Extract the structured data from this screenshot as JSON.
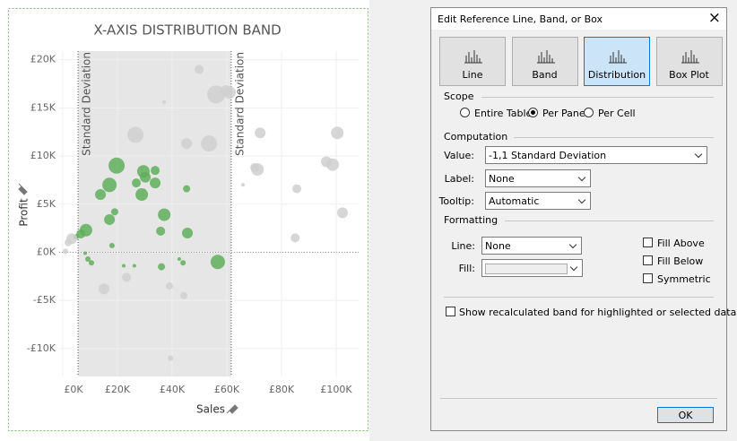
{
  "chart_data": {
    "type": "scatter",
    "title": "X-AXIS DISTRIBUTION BAND",
    "x_label": "Sales",
    "y_label": "Profit",
    "xlim": [
      -1300,
      108200
    ],
    "ylim": [
      -12900,
      20900
    ],
    "xticks": [
      {
        "value": 0,
        "label": "£0K"
      },
      {
        "value": 20000,
        "label": "£20K"
      },
      {
        "value": 40000,
        "label": "£40K"
      },
      {
        "value": 60000,
        "label": "£60K"
      },
      {
        "value": 80000,
        "label": "£80K"
      },
      {
        "value": 100000,
        "label": "£100K"
      }
    ],
    "yticks": [
      {
        "value": 20000,
        "label": "£20K"
      },
      {
        "value": 15000,
        "label": "£15K"
      },
      {
        "value": 10000,
        "label": "£10K"
      },
      {
        "value": 5000,
        "label": "£5K"
      },
      {
        "value": 0,
        "label": "£0K"
      },
      {
        "value": -5000,
        "label": "-£5K"
      },
      {
        "value": -10000,
        "label": "-£10K"
      }
    ],
    "grid": true,
    "zero_line": 0,
    "band": {
      "color": "#e6e6e6",
      "lines": [
        {
          "value": 5600,
          "label": "Standard Deviation"
        },
        {
          "value": 61600,
          "label": "Standard Deviation"
        }
      ]
    },
    "series": [
      {
        "color": "#5fae5c",
        "x": [
          19700,
          17100,
          13800,
          29500,
          30200,
          26900,
          33800,
          33800,
          28900,
          37100,
          19000,
          17100,
          8500,
          6600,
          4900,
          35800,
          45300,
          45600,
          56700,
          18000,
          8200,
          9200,
          10500,
          26200,
          36100,
          42600,
          44000,
          22300
        ],
        "values": [
          9000,
          7000,
          6000,
          8400,
          7800,
          7200,
          7200,
          8500,
          6000,
          3900,
          4200,
          3400,
          2300,
          1900,
          1600,
          2200,
          6600,
          2000,
          -1000,
          700,
          -100,
          -700,
          -1100,
          -1400,
          -1500,
          -700,
          -1100,
          -1400
        ],
        "sizes": [
          9,
          8,
          6,
          7,
          6,
          5,
          6,
          5,
          7,
          7,
          4,
          6,
          7,
          5,
          3,
          5,
          4,
          6,
          8,
          3,
          2,
          3,
          3,
          2,
          4,
          2,
          3,
          2
        ]
      },
      {
        "color": "#cfcfcf",
        "x": [
          56100,
          49900,
          26600,
          53500,
          45300,
          37100,
          59700,
          61000,
          72200,
          71200,
          70200,
          65900,
          85600,
          96400,
          98700,
          100400,
          102300,
          85000,
          3300,
          2000,
          1000,
          15100,
          23300,
          39000,
          44300,
          39400
        ],
        "values": [
          16400,
          19000,
          12200,
          11300,
          11300,
          15600,
          16800,
          16600,
          12400,
          8600,
          8800,
          7000,
          6600,
          9400,
          9100,
          12400,
          4100,
          1500,
          1400,
          1000,
          100,
          -3800,
          -2600,
          -3500,
          -4500,
          -11000
        ],
        "sizes": [
          10,
          5,
          9,
          9,
          6,
          2,
          6,
          7,
          6,
          7,
          5,
          2,
          5,
          6,
          7,
          7,
          6,
          5,
          6,
          4,
          3,
          6,
          5,
          4,
          4,
          3
        ]
      }
    ]
  },
  "dialog": {
    "title": "Edit Reference Line, Band, or Box",
    "close": "×",
    "tabs": [
      {
        "label": "Line",
        "selected": false
      },
      {
        "label": "Band",
        "selected": false
      },
      {
        "label": "Distribution",
        "selected": true
      },
      {
        "label": "Box Plot",
        "selected": false
      }
    ],
    "scope": {
      "label": "Scope",
      "options": [
        {
          "label": "Entire Table",
          "checked": false
        },
        {
          "label": "Per Pane",
          "checked": true
        },
        {
          "label": "Per Cell",
          "checked": false
        }
      ]
    },
    "computation": {
      "label": "Computation",
      "fields": [
        {
          "label": "Value:",
          "value": "-1,1 Standard Deviation"
        },
        {
          "label": "Label:",
          "value": "None"
        },
        {
          "label": "Tooltip:",
          "value": "Automatic"
        }
      ]
    },
    "formatting": {
      "label": "Formatting",
      "fields": [
        {
          "label": "Line:",
          "value": "None"
        },
        {
          "label": "Fill:"
        }
      ],
      "checkboxes": [
        {
          "label": "Fill Above",
          "checked": false
        },
        {
          "label": "Fill Below",
          "checked": false
        },
        {
          "label": "Symmetric",
          "checked": false
        }
      ]
    },
    "show_recalculated": {
      "label": "Show recalculated band for highlighted or selected data points",
      "checked": false
    },
    "ok": "OK"
  }
}
